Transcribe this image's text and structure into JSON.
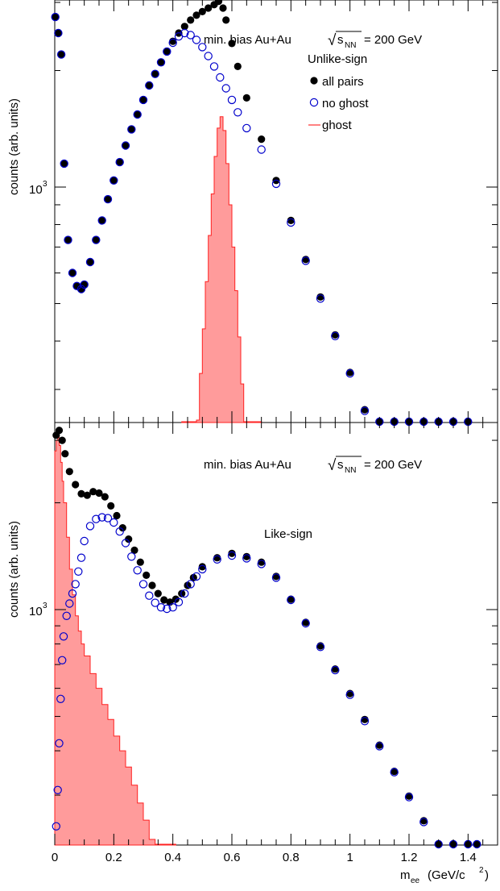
{
  "chart_data": [
    {
      "type": "scatter",
      "panel": "top",
      "title": "min. bias Au+Au",
      "energy_label": "= 200 GeV",
      "sqrt_symbol": "√",
      "sqrt_var": "s",
      "sqrt_sub": "NN",
      "subtitle": "Unlike-sign",
      "ylabel": "counts (arb. units)",
      "xlabel": "",
      "xlim": [
        0,
        1.5
      ],
      "ylog": true,
      "ytick_label": "10",
      "ytick_exp": "3",
      "legend_position": "top-right",
      "series": [
        {
          "name": "all pairs",
          "marker": "filled-circle",
          "color": "#000000",
          "x": [
            0.002,
            0.012,
            0.022,
            0.032,
            0.045,
            0.06,
            0.075,
            0.09,
            0.1,
            0.12,
            0.14,
            0.16,
            0.18,
            0.2,
            0.22,
            0.24,
            0.26,
            0.28,
            0.3,
            0.32,
            0.34,
            0.36,
            0.38,
            0.4,
            0.42,
            0.44,
            0.46,
            0.48,
            0.5,
            0.52,
            0.54,
            0.555,
            0.57,
            0.58,
            0.6,
            0.62,
            0.65,
            0.7,
            0.75,
            0.8,
            0.85,
            0.9,
            0.95,
            1.0,
            1.05,
            1.1,
            1.15,
            1.2,
            1.25,
            1.3,
            1.35,
            1.4
          ],
          "y": [
            2750,
            2500,
            2200,
            1150,
            730,
            600,
            555,
            545,
            560,
            640,
            730,
            820,
            930,
            1040,
            1160,
            1280,
            1410,
            1540,
            1680,
            1830,
            1960,
            2100,
            2240,
            2380,
            2500,
            2600,
            2700,
            2780,
            2840,
            2900,
            2960,
            3020,
            2900,
            2700,
            2350,
            2050,
            1700,
            1330,
            1040,
            820,
            650,
            520,
            415,
            332,
            266,
            215,
            176,
            144,
            120,
            102,
            90,
            82
          ]
        },
        {
          "name": "no ghost",
          "marker": "open-circle",
          "color": "#0000cc",
          "x": [
            0.002,
            0.012,
            0.022,
            0.032,
            0.045,
            0.06,
            0.075,
            0.09,
            0.1,
            0.12,
            0.14,
            0.16,
            0.18,
            0.2,
            0.22,
            0.24,
            0.26,
            0.28,
            0.3,
            0.32,
            0.34,
            0.36,
            0.38,
            0.4,
            0.42,
            0.44,
            0.46,
            0.48,
            0.5,
            0.52,
            0.54,
            0.56,
            0.58,
            0.6,
            0.62,
            0.65,
            0.7,
            0.75,
            0.8,
            0.85,
            0.9,
            0.95,
            1.0,
            1.05,
            1.1,
            1.15,
            1.2,
            1.25,
            1.3,
            1.35,
            1.4
          ],
          "y": [
            2750,
            2500,
            2200,
            1150,
            730,
            600,
            555,
            545,
            560,
            640,
            730,
            820,
            930,
            1040,
            1160,
            1280,
            1410,
            1540,
            1680,
            1830,
            1960,
            2100,
            2240,
            2360,
            2450,
            2500,
            2470,
            2400,
            2300,
            2180,
            2050,
            1920,
            1800,
            1680,
            1560,
            1420,
            1250,
            1020,
            810,
            645,
            515,
            412,
            330,
            264,
            212,
            173,
            143,
            119,
            101,
            88,
            80
          ]
        },
        {
          "name": "ghost",
          "marker": "filled-area",
          "color": "#ff9090",
          "x": [
            0.43,
            0.44,
            0.45,
            0.46,
            0.47,
            0.48,
            0.49,
            0.5,
            0.51,
            0.52,
            0.53,
            0.54,
            0.55,
            0.56,
            0.57,
            0.58,
            0.59,
            0.6,
            0.61,
            0.62,
            0.63,
            0.64,
            0.65,
            0.66,
            0.67,
            0.68,
            0.69
          ],
          "y": [
            80,
            92,
            118,
            150,
            190,
            250,
            330,
            430,
            570,
            750,
            960,
            1200,
            1420,
            1520,
            1400,
            1150,
            900,
            700,
            540,
            410,
            310,
            240,
            180,
            140,
            110,
            92,
            80
          ]
        }
      ]
    },
    {
      "type": "scatter",
      "panel": "bottom",
      "title": "min. bias Au+Au",
      "energy_label": "= 200 GeV",
      "sqrt_symbol": "√",
      "sqrt_var": "s",
      "sqrt_sub": "NN",
      "subtitle": "Like-sign",
      "ylabel": "counts (arb. units)",
      "xlabel": "m",
      "xlabel_sub": "ee",
      "xlabel_unit": "(GeV/c",
      "xlabel_unit_sup": "2",
      "xlabel_unit_end": ")",
      "xlim": [
        0,
        1.5
      ],
      "ylog": true,
      "ytick_label": "10",
      "ytick_exp": "3",
      "xticks": [
        "0",
        "0.2",
        "0.4",
        "0.6",
        "0.8",
        "1",
        "1.2",
        "1.4"
      ],
      "series": [
        {
          "name": "all pairs",
          "marker": "filled-circle",
          "color": "#000000",
          "x": [
            0.005,
            0.015,
            0.025,
            0.035,
            0.05,
            0.07,
            0.09,
            0.11,
            0.13,
            0.15,
            0.17,
            0.19,
            0.21,
            0.23,
            0.25,
            0.27,
            0.29,
            0.31,
            0.33,
            0.35,
            0.37,
            0.39,
            0.41,
            0.43,
            0.45,
            0.47,
            0.5,
            0.55,
            0.6,
            0.65,
            0.7,
            0.75,
            0.8,
            0.85,
            0.9,
            0.95,
            1.0,
            1.05,
            1.1,
            1.15,
            1.2,
            1.25,
            1.3,
            1.35,
            1.4,
            1.43
          ],
          "y": [
            3100,
            3200,
            3000,
            2750,
            2450,
            2250,
            2120,
            2100,
            2150,
            2130,
            2080,
            1960,
            1840,
            1700,
            1580,
            1470,
            1360,
            1250,
            1170,
            1110,
            1065,
            1050,
            1070,
            1110,
            1170,
            1230,
            1320,
            1400,
            1440,
            1410,
            1360,
            1240,
            1070,
            920,
            790,
            680,
            580,
            490,
            415,
            350,
            298,
            254,
            217,
            185,
            160,
            152
          ]
        },
        {
          "name": "no ghost",
          "marker": "open-circle",
          "color": "#0000cc",
          "x": [
            0.005,
            0.01,
            0.015,
            0.02,
            0.025,
            0.03,
            0.04,
            0.05,
            0.06,
            0.07,
            0.08,
            0.09,
            0.1,
            0.12,
            0.14,
            0.16,
            0.18,
            0.2,
            0.22,
            0.24,
            0.26,
            0.28,
            0.3,
            0.32,
            0.34,
            0.36,
            0.38,
            0.4,
            0.42,
            0.44,
            0.46,
            0.48,
            0.5,
            0.55,
            0.6,
            0.65,
            0.7,
            0.75,
            0.8,
            0.85,
            0.9,
            0.95,
            1.0,
            1.05,
            1.1,
            1.15,
            1.2,
            1.25,
            1.3,
            1.35,
            1.4,
            1.43
          ],
          "y": [
            245,
            310,
            420,
            560,
            720,
            840,
            960,
            1040,
            1110,
            1180,
            1280,
            1400,
            1560,
            1720,
            1800,
            1820,
            1810,
            1760,
            1660,
            1540,
            1410,
            1290,
            1180,
            1095,
            1045,
            1015,
            1005,
            1015,
            1050,
            1110,
            1180,
            1240,
            1300,
            1385,
            1420,
            1395,
            1345,
            1230,
            1065,
            915,
            785,
            675,
            575,
            485,
            412,
            348,
            296,
            252,
            215,
            184,
            160,
            152
          ]
        },
        {
          "name": "ghost",
          "marker": "filled-area",
          "color": "#ff9090",
          "x": [
            0.0,
            0.005,
            0.01,
            0.015,
            0.02,
            0.025,
            0.03,
            0.04,
            0.05,
            0.06,
            0.07,
            0.08,
            0.09,
            0.1,
            0.12,
            0.14,
            0.16,
            0.18,
            0.2,
            0.22,
            0.24,
            0.26,
            0.28,
            0.3,
            0.32,
            0.34,
            0.36,
            0.38,
            0.4
          ],
          "y": [
            2800,
            3000,
            3100,
            2900,
            2600,
            2300,
            2000,
            1600,
            1300,
            1100,
            960,
            870,
            800,
            740,
            660,
            600,
            540,
            490,
            440,
            400,
            360,
            320,
            285,
            255,
            225,
            200,
            180,
            160,
            140
          ]
        }
      ]
    }
  ]
}
